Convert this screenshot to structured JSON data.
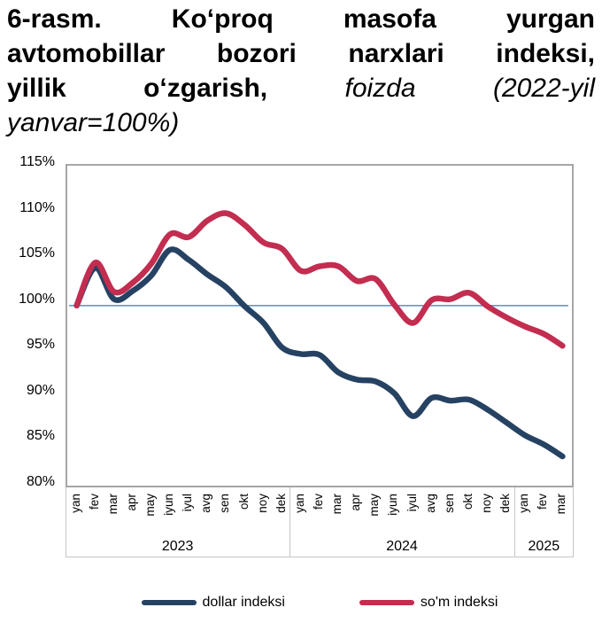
{
  "title": {
    "line1": "6-rasm. Koʻproq masofa yurgan",
    "line2": "avtomobillar bozori narxlari indeksi,",
    "line3_regular": "yillik oʻzgarish,",
    "line3_italic": "foizda (2022-yil",
    "line4_italic": "yanvar=100%)"
  },
  "chart_data": {
    "type": "line",
    "smoothed": true,
    "title": "6-rasm. Koʻproq masofa yurgan avtomobillar bozori narxlari indeksi, yillik oʻzgarish, foizda (2022-yil yanvar=100%)",
    "xlabel": "",
    "ylabel": "",
    "ylim": [
      80,
      115
    ],
    "ytick_labels": [
      "115%",
      "110%",
      "105%",
      "100%",
      "95%",
      "90%",
      "85%",
      "80%"
    ],
    "ytick_values": [
      115,
      110,
      105,
      100,
      95,
      90,
      85,
      80
    ],
    "grid": false,
    "legend_position": "bottom",
    "x_labels": [
      "yan",
      "fev",
      "mar",
      "apr",
      "may",
      "iyun",
      "iyul",
      "avg",
      "sen",
      "okt",
      "noy",
      "dek",
      "yan",
      "fev",
      "mar",
      "apr",
      "may",
      "iyun",
      "iyul",
      "avg",
      "sen",
      "okt",
      "noy",
      "dek",
      "yan",
      "fev",
      "mar"
    ],
    "year_groups": [
      {
        "label": "2023",
        "months": 12
      },
      {
        "label": "2024",
        "months": 12
      },
      {
        "label": "2025",
        "months": 3
      }
    ],
    "reference_line": {
      "value": 99.7,
      "color": "#5b9bd5"
    },
    "series": [
      {
        "name": "dollar indeksi",
        "color": "#264263",
        "values": [
          99.7,
          103.8,
          100.4,
          101.3,
          103.0,
          105.8,
          104.7,
          103.1,
          101.7,
          99.6,
          97.8,
          95.1,
          94.4,
          94.3,
          92.4,
          91.6,
          91.4,
          90.1,
          87.6,
          89.6,
          89.3,
          89.4,
          88.3,
          86.9,
          85.5,
          84.5,
          83.2
        ]
      },
      {
        "name": "so'm indeksi",
        "color": "#c22d50",
        "values": [
          99.7,
          104.4,
          101.2,
          102.2,
          104.3,
          107.5,
          107.2,
          109.0,
          109.8,
          108.5,
          106.6,
          105.9,
          103.5,
          104.0,
          104.0,
          102.4,
          102.6,
          99.8,
          97.8,
          100.3,
          100.4,
          101.1,
          99.6,
          98.4,
          97.4,
          96.6,
          95.3
        ]
      }
    ],
    "colors": {
      "plot_border": "#a6a6a6",
      "axis_separator": "#c6c6c6",
      "text": "#000000"
    }
  }
}
